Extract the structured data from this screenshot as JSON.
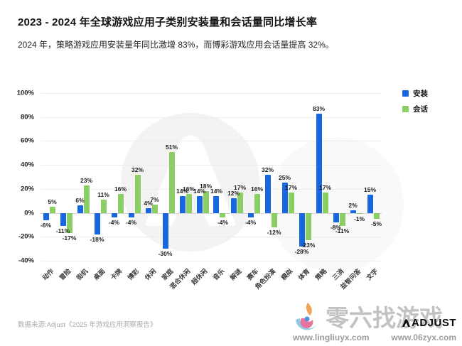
{
  "header": {
    "title": "2023 - 2024 年全球游戏应用子类别安装量和会话量同比增长率",
    "subtitle": "2024 年，策略游戏应用安装量年同比激增 83%，而博彩游戏应用会话量提高 32%。"
  },
  "chart_data": {
    "type": "bar",
    "categories": [
      "动作",
      "冒险",
      "街机",
      "桌面",
      "卡牌",
      "博彩",
      "休闲",
      "家庭",
      "混合休闲",
      "超休闲",
      "音乐",
      "解谜",
      "赛车",
      "角色扮演",
      "模拟",
      "体育",
      "策略",
      "三消",
      "益智问答",
      "文字"
    ],
    "series": [
      {
        "name": "安装",
        "color": "#1667E0",
        "values": [
          -6,
          -11,
          6,
          -18,
          -4,
          -4,
          4,
          -30,
          14,
          14,
          14,
          12,
          -4,
          32,
          25,
          -28,
          83,
          -8,
          2,
          15
        ]
      },
      {
        "name": "会话",
        "color": "#8BCE63",
        "values": [
          5,
          -17,
          23,
          11,
          16,
          32,
          7,
          51,
          16,
          18,
          -4,
          17,
          16,
          -12,
          17,
          -23,
          17,
          -11,
          -1,
          -5
        ]
      }
    ],
    "title": "",
    "xlabel": "",
    "ylabel": "",
    "ylim": [
      -40,
      100
    ],
    "yticks": [
      100,
      80,
      60,
      40,
      20,
      0,
      -20,
      -40
    ],
    "y_tick_suffix": "%",
    "value_label_suffix": "%",
    "grid": true,
    "legend_position": "top-right"
  },
  "footer": {
    "source": "数据来源:Adjust《2025 年游戏应用洞察报告》"
  },
  "watermark": {
    "brand_text": "零六找游戏",
    "adjust_text": "ADJUST",
    "url_left": "www.lingliuyx.com",
    "url_right": "www.06zyx.com"
  },
  "icons": {
    "chart_watermark": "adjust-mountain-logo",
    "brand_logo": "lingliu-swirl-logo",
    "adjust_mark": "adjust-mountain-glyph"
  }
}
